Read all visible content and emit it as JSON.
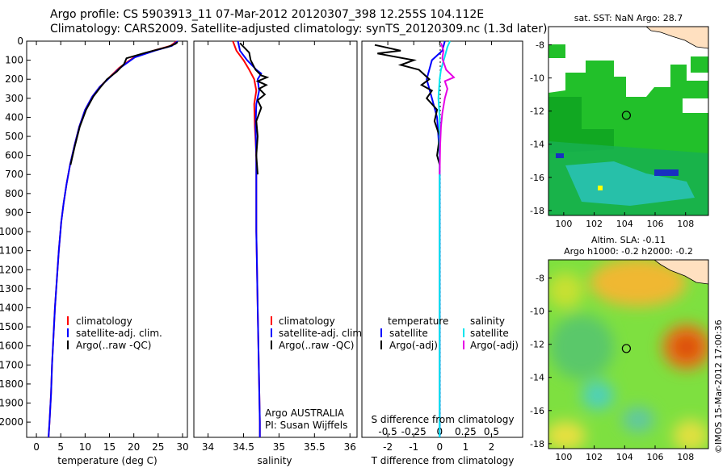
{
  "header": {
    "line1": "Argo profile: CS 5903913_11 07-Mar-2012 20120307_398 12.255S 104.112E",
    "line2": "Climatology: CARS2009. Satellite-adjusted climatology: synTS_20120309.nc (1.3d later)"
  },
  "colors": {
    "climatology": "#ff0000",
    "satellite_adj": "#0000ff",
    "argo": "#000000",
    "satellite_salinity": "#00e5ee",
    "argo_salinity": "#e600e6"
  },
  "chart_data": [
    {
      "type": "line",
      "id": "temperature",
      "xlabel": "temperature (deg C)",
      "ylabel": "",
      "xlim": [
        -2,
        31
      ],
      "ylim": [
        2080,
        0
      ],
      "xticks": [
        0,
        5,
        10,
        15,
        20,
        25,
        30
      ],
      "yticks": [
        0,
        100,
        200,
        300,
        400,
        500,
        600,
        700,
        800,
        900,
        1000,
        1100,
        1200,
        1300,
        1400,
        1500,
        1600,
        1700,
        1800,
        1900,
        2000
      ],
      "legend": [
        "climatology",
        "satellite-adj. clim.",
        "Argo(..raw -QC)"
      ],
      "series": [
        {
          "name": "climatology",
          "color": "#ff0000",
          "points": [
            [
              28.8,
              0
            ],
            [
              27.5,
              25
            ],
            [
              24,
              50
            ],
            [
              20,
              85
            ],
            [
              17,
              140
            ],
            [
              15,
              190
            ],
            [
              13,
              240
            ],
            [
              11.5,
              290
            ],
            [
              10,
              360
            ],
            [
              8.8,
              450
            ],
            [
              7.8,
              550
            ],
            [
              6.9,
              650
            ],
            [
              6.2,
              750
            ],
            [
              5.6,
              850
            ],
            [
              5.1,
              950
            ],
            [
              4.6,
              1100
            ],
            [
              4.2,
              1250
            ],
            [
              3.8,
              1400
            ],
            [
              3.5,
              1550
            ],
            [
              3.2,
              1700
            ],
            [
              3.0,
              1850
            ],
            [
              2.7,
              2000
            ],
            [
              2.5,
              2080
            ]
          ]
        },
        {
          "name": "satellite-adj. clim.",
          "color": "#0000ff",
          "points": [
            [
              29,
              0
            ],
            [
              27.8,
              25
            ],
            [
              24.3,
              50
            ],
            [
              20.2,
              85
            ],
            [
              17.2,
              140
            ],
            [
              15.1,
              190
            ],
            [
              13,
              240
            ],
            [
              11.5,
              290
            ],
            [
              10,
              360
            ],
            [
              8.8,
              450
            ],
            [
              7.8,
              550
            ],
            [
              6.9,
              650
            ],
            [
              6.2,
              750
            ],
            [
              5.6,
              850
            ],
            [
              5.1,
              950
            ],
            [
              4.6,
              1100
            ],
            [
              4.2,
              1250
            ],
            [
              3.8,
              1400
            ],
            [
              3.5,
              1550
            ],
            [
              3.2,
              1700
            ],
            [
              3.0,
              1850
            ],
            [
              2.7,
              2000
            ],
            [
              2.5,
              2080
            ]
          ]
        },
        {
          "name": "Argo(..raw -QC)",
          "color": "#000000",
          "points": [
            [
              29,
              5
            ],
            [
              28.5,
              15
            ],
            [
              27,
              30
            ],
            [
              22.5,
              60
            ],
            [
              18.5,
              90
            ],
            [
              18,
              120
            ],
            [
              16.5,
              160
            ],
            [
              14.5,
              200
            ],
            [
              13.2,
              240
            ],
            [
              11.7,
              290
            ],
            [
              10.2,
              360
            ],
            [
              8.9,
              450
            ],
            [
              7.9,
              550
            ],
            [
              7.0,
              650
            ]
          ]
        }
      ]
    },
    {
      "type": "line",
      "id": "salinity",
      "xlabel": "salinity",
      "xlim": [
        33.8,
        36.1
      ],
      "ylim": [
        2080,
        0
      ],
      "xticks": [
        34,
        34.5,
        35,
        35.5,
        36
      ],
      "legend": [
        "climatology",
        "satellite-adj. clim.",
        "Argo(..raw -QC)"
      ],
      "annotation": [
        "Argo AUSTRALIA",
        "PI: Susan Wijffels"
      ],
      "series": [
        {
          "name": "climatology",
          "color": "#ff0000",
          "points": [
            [
              34.35,
              0
            ],
            [
              34.4,
              50
            ],
            [
              34.5,
              100
            ],
            [
              34.58,
              150
            ],
            [
              34.65,
              200
            ],
            [
              34.68,
              260
            ],
            [
              34.65,
              330
            ],
            [
              34.66,
              450
            ],
            [
              34.68,
              600
            ],
            [
              34.68,
              800
            ],
            [
              34.68,
              1000
            ],
            [
              34.69,
              1200
            ],
            [
              34.7,
              1400
            ],
            [
              34.71,
              1600
            ],
            [
              34.72,
              1800
            ],
            [
              34.73,
              2000
            ],
            [
              34.73,
              2080
            ]
          ]
        },
        {
          "name": "satellite-adj. clim.",
          "color": "#0000ff",
          "points": [
            [
              34.42,
              0
            ],
            [
              34.45,
              50
            ],
            [
              34.55,
              100
            ],
            [
              34.68,
              150
            ],
            [
              34.75,
              170
            ],
            [
              34.7,
              200
            ],
            [
              34.72,
              260
            ],
            [
              34.68,
              330
            ],
            [
              34.67,
              450
            ],
            [
              34.68,
              600
            ],
            [
              34.68,
              800
            ],
            [
              34.68,
              1000
            ],
            [
              34.69,
              1200
            ],
            [
              34.7,
              1400
            ],
            [
              34.71,
              1600
            ],
            [
              34.72,
              1800
            ],
            [
              34.73,
              2000
            ],
            [
              34.73,
              2080
            ]
          ]
        },
        {
          "name": "Argo(..raw -QC)",
          "color": "#000000",
          "points": [
            [
              34.45,
              10
            ],
            [
              34.58,
              60
            ],
            [
              34.6,
              100
            ],
            [
              34.67,
              150
            ],
            [
              34.75,
              180
            ],
            [
              34.83,
              190
            ],
            [
              34.7,
              210
            ],
            [
              34.82,
              230
            ],
            [
              34.72,
              250
            ],
            [
              34.8,
              280
            ],
            [
              34.7,
              310
            ],
            [
              34.75,
              350
            ],
            [
              34.68,
              420
            ],
            [
              34.7,
              500
            ],
            [
              34.68,
              600
            ],
            [
              34.7,
              700
            ]
          ]
        }
      ]
    },
    {
      "type": "line",
      "id": "difference",
      "xlabel": "T difference from climatology",
      "top_label": "S difference from climatology",
      "xlim": [
        -3,
        3.2
      ],
      "ylim": [
        2080,
        0
      ],
      "xticks": [
        -2,
        -1,
        0,
        1,
        2
      ],
      "top_ticks": [
        "-0.5",
        "-0.25",
        "0",
        "0.25",
        "0.5"
      ],
      "top_tick_values": [
        -0.5,
        -0.25,
        0,
        0.25,
        0.5
      ],
      "legend_temperature": {
        "title": "temperature",
        "items": [
          "satellite",
          "Argo(-adj)"
        ]
      },
      "legend_salinity": {
        "title": "salinity",
        "items": [
          "satellite",
          "Argo(-adj)"
        ]
      },
      "series": [
        {
          "name": "temperature satellite",
          "color": "#0000ff",
          "points": [
            [
              0.2,
              0
            ],
            [
              0.1,
              50
            ],
            [
              -0.3,
              100
            ],
            [
              -0.5,
              200
            ],
            [
              -0.3,
              300
            ],
            [
              -0.1,
              400
            ],
            [
              0,
              600
            ],
            [
              0,
              900
            ],
            [
              0,
              1200
            ],
            [
              0,
              1500
            ],
            [
              0,
              1800
            ],
            [
              0,
              2000
            ],
            [
              0,
              2080
            ]
          ]
        },
        {
          "name": "temperature Argo(-adj)",
          "color": "#000000",
          "points": [
            [
              -2.5,
              20
            ],
            [
              -1.5,
              50
            ],
            [
              -2.4,
              65
            ],
            [
              -1,
              100
            ],
            [
              -1.5,
              125
            ],
            [
              -0.8,
              150
            ],
            [
              -0.4,
              200
            ],
            [
              -0.7,
              230
            ],
            [
              -0.3,
              260
            ],
            [
              -0.5,
              300
            ],
            [
              -0.1,
              360
            ],
            [
              -0.2,
              420
            ],
            [
              0,
              500
            ],
            [
              -0.1,
              600
            ],
            [
              0,
              650
            ]
          ]
        },
        {
          "name": "salinity satellite",
          "color": "#00e5ee",
          "points": [
            [
              0.4,
              0
            ],
            [
              0.3,
              30
            ],
            [
              0.2,
              80
            ],
            [
              0.05,
              150
            ],
            [
              0,
              200
            ],
            [
              -0.05,
              300
            ],
            [
              0,
              400
            ],
            [
              0,
              600
            ],
            [
              0,
              1000
            ],
            [
              0,
              1500
            ],
            [
              0,
              2000
            ],
            [
              0,
              2080
            ]
          ]
        },
        {
          "name": "salinity Argo(-adj)",
          "color": "#e600e6",
          "points": [
            [
              0.05,
              10
            ],
            [
              0.15,
              50
            ],
            [
              0.1,
              90
            ],
            [
              0.25,
              150
            ],
            [
              0.55,
              190
            ],
            [
              0.2,
              210
            ],
            [
              0.3,
              250
            ],
            [
              0.2,
              300
            ],
            [
              0.1,
              380
            ],
            [
              0.05,
              450
            ],
            [
              0.02,
              550
            ],
            [
              0,
              700
            ]
          ]
        }
      ]
    },
    {
      "type": "heatmap",
      "id": "sst-map",
      "title": "sat. SST: NaN Argo: 28.7",
      "xlim": [
        99,
        109.5
      ],
      "ylim": [
        -18.3,
        -6.9
      ],
      "xticks": [
        100,
        102,
        104,
        106,
        108
      ],
      "yticks": [
        -8,
        -10,
        -12,
        -14,
        -16,
        -18
      ],
      "argo_position": [
        104.112,
        -12.255
      ]
    },
    {
      "type": "heatmap",
      "id": "sla-map",
      "title": "Altim. SLA: -0.11",
      "subtitle": "Argo h1000: -0.2 h2000: -0.2",
      "xlim": [
        99,
        109.5
      ],
      "ylim": [
        -18.3,
        -6.9
      ],
      "xticks": [
        100,
        102,
        104,
        106,
        108
      ],
      "yticks": [
        -8,
        -10,
        -12,
        -14,
        -16,
        -18
      ],
      "argo_position": [
        104.112,
        -12.255
      ]
    }
  ],
  "footer": {
    "side_text": "©IMOS 15-Mar-2012 17:00:36"
  }
}
